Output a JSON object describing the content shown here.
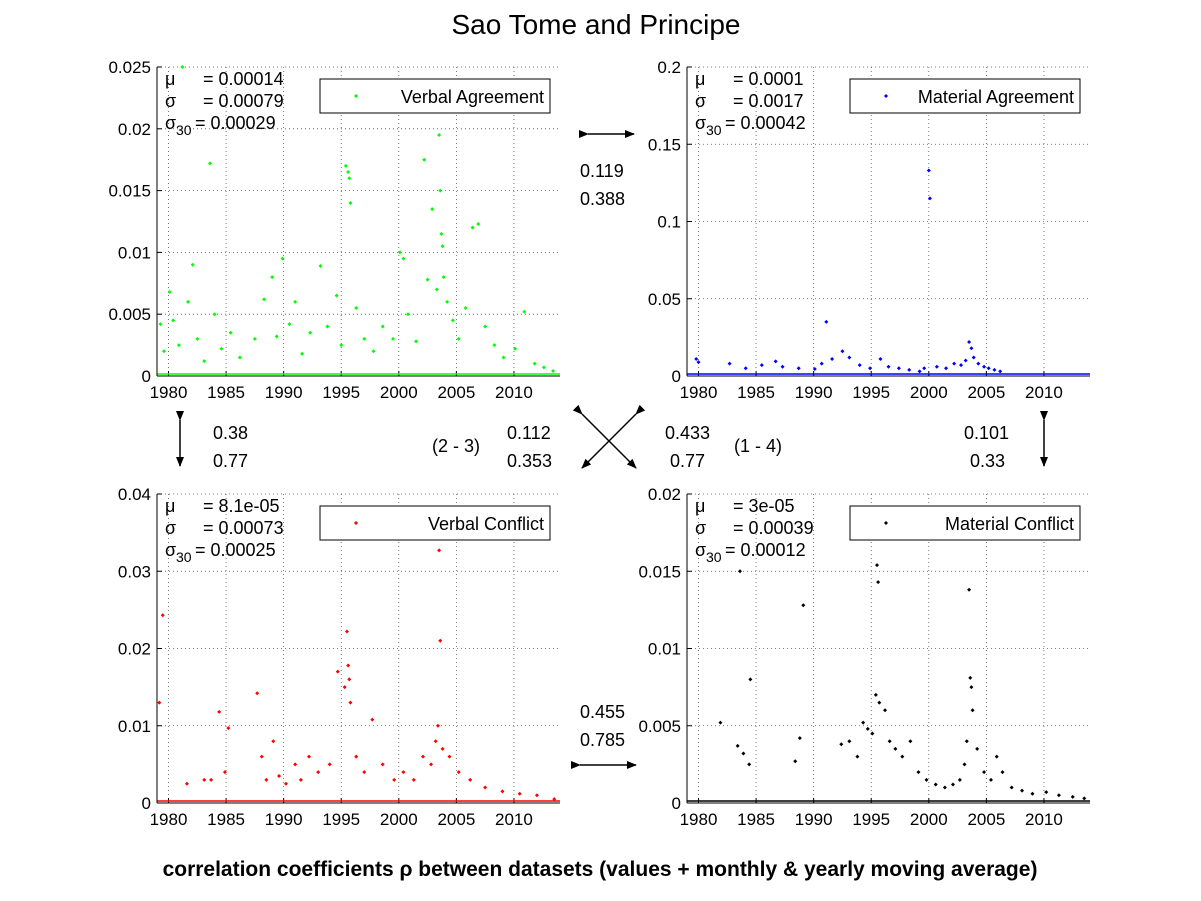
{
  "figure": {
    "title": "Sao Tome and Principe",
    "footer": "correlation coefficients ρ between datasets (values + monthly & yearly moving average)"
  },
  "correlations": {
    "top_pair": {
      "a": "0.119",
      "b": "0.388"
    },
    "left_pair": {
      "a": "0.38",
      "b": "0.77"
    },
    "right_pair": {
      "a": "0.101",
      "b": "0.33"
    },
    "diag_23": {
      "a": "0.112",
      "b": "0.353",
      "label": "(2 - 3)"
    },
    "diag_14": {
      "a": "0.433",
      "b": "0.77",
      "label": "(1 - 4)"
    },
    "bottom_pair": {
      "a": "0.455",
      "b": "0.785"
    }
  },
  "chart_data": [
    {
      "type": "scatter",
      "legend": "Verbal Agreement",
      "legend_placement": "top-right",
      "color": "#00ff00",
      "xlim": [
        1979,
        2014
      ],
      "ylim": [
        0,
        0.025
      ],
      "xticks": [
        "1980",
        "1985",
        "1990",
        "1995",
        "2000",
        "2005",
        "2010"
      ],
      "yticks": [
        "0",
        "0.005",
        "0.01",
        "0.015",
        "0.02",
        "0.025"
      ],
      "grid": true,
      "stats": {
        "mu": "= 0.00014",
        "sigma": "= 0.00079",
        "sigma30": "= 0.00029"
      },
      "points": [
        [
          1979.3,
          0.0042
        ],
        [
          1979.6,
          0.002
        ],
        [
          1980.1,
          0.0068
        ],
        [
          1980.4,
          0.0045
        ],
        [
          1980.9,
          0.0025
        ],
        [
          1981.2,
          0.025
        ],
        [
          1981.7,
          0.006
        ],
        [
          1982.1,
          0.009
        ],
        [
          1982.5,
          0.003
        ],
        [
          1983.1,
          0.0012
        ],
        [
          1983.6,
          0.0172
        ],
        [
          1984.0,
          0.005
        ],
        [
          1984.6,
          0.0022
        ],
        [
          1985.4,
          0.0035
        ],
        [
          1986.2,
          0.0015
        ],
        [
          1987.5,
          0.003
        ],
        [
          1988.3,
          0.0062
        ],
        [
          1989.0,
          0.008
        ],
        [
          1989.4,
          0.0032
        ],
        [
          1989.9,
          0.0095
        ],
        [
          1990.5,
          0.0042
        ],
        [
          1991.0,
          0.006
        ],
        [
          1991.6,
          0.0018
        ],
        [
          1992.3,
          0.0035
        ],
        [
          1993.2,
          0.0089
        ],
        [
          1993.8,
          0.004
        ],
        [
          1994.6,
          0.0065
        ],
        [
          1995.0,
          0.0025
        ],
        [
          1995.4,
          0.017
        ],
        [
          1995.6,
          0.0165
        ],
        [
          1995.7,
          0.016
        ],
        [
          1995.8,
          0.014
        ],
        [
          1996.3,
          0.0055
        ],
        [
          1997.0,
          0.003
        ],
        [
          1997.8,
          0.002
        ],
        [
          1998.6,
          0.004
        ],
        [
          1999.5,
          0.003
        ],
        [
          2000.1,
          0.01
        ],
        [
          2000.4,
          0.0095
        ],
        [
          2000.8,
          0.005
        ],
        [
          2001.5,
          0.0028
        ],
        [
          2002.2,
          0.0175
        ],
        [
          2002.5,
          0.0078
        ],
        [
          2002.9,
          0.0135
        ],
        [
          2003.3,
          0.007
        ],
        [
          2003.5,
          0.0195
        ],
        [
          2003.6,
          0.015
        ],
        [
          2003.7,
          0.0115
        ],
        [
          2003.8,
          0.0105
        ],
        [
          2003.9,
          0.008
        ],
        [
          2004.2,
          0.006
        ],
        [
          2004.7,
          0.0045
        ],
        [
          2005.2,
          0.003
        ],
        [
          2005.8,
          0.0055
        ],
        [
          2006.4,
          0.012
        ],
        [
          2006.9,
          0.0123
        ],
        [
          2007.5,
          0.004
        ],
        [
          2008.3,
          0.0025
        ],
        [
          2009.1,
          0.0015
        ],
        [
          2010.1,
          0.0022
        ],
        [
          2010.9,
          0.0052
        ],
        [
          2011.8,
          0.001
        ],
        [
          2012.6,
          0.0007
        ],
        [
          2013.4,
          0.0004
        ]
      ]
    },
    {
      "type": "scatter",
      "legend": "Material Agreement",
      "legend_placement": "top-right",
      "color": "#0000ff",
      "xlim": [
        1979,
        2014
      ],
      "ylim": [
        0,
        0.2
      ],
      "xticks": [
        "1980",
        "1985",
        "1990",
        "1995",
        "2000",
        "2005",
        "2010"
      ],
      "yticks": [
        "0",
        "0.05",
        "0.1",
        "0.15",
        "0.2"
      ],
      "grid": true,
      "stats": {
        "mu": "= 0.0001",
        "sigma": "= 0.0017",
        "sigma30": "= 0.00042"
      },
      "points": [
        [
          1979.8,
          0.011
        ],
        [
          1980.0,
          0.009
        ],
        [
          1982.7,
          0.008
        ],
        [
          1984.1,
          0.005
        ],
        [
          1985.5,
          0.007
        ],
        [
          1986.7,
          0.0095
        ],
        [
          1987.3,
          0.006
        ],
        [
          1988.7,
          0.005
        ],
        [
          1990.1,
          0.0045
        ],
        [
          1990.7,
          0.008
        ],
        [
          1991.1,
          0.035
        ],
        [
          1991.6,
          0.011
        ],
        [
          1992.5,
          0.016
        ],
        [
          1993.1,
          0.012
        ],
        [
          1994.0,
          0.007
        ],
        [
          1994.9,
          0.005
        ],
        [
          1995.8,
          0.011
        ],
        [
          1996.5,
          0.006
        ],
        [
          1997.4,
          0.005
        ],
        [
          1998.3,
          0.004
        ],
        [
          1999.2,
          0.003
        ],
        [
          1999.6,
          0.005
        ],
        [
          2000.0,
          0.133
        ],
        [
          2000.1,
          0.115
        ],
        [
          2000.7,
          0.006
        ],
        [
          2001.5,
          0.005
        ],
        [
          2002.2,
          0.008
        ],
        [
          2002.8,
          0.007
        ],
        [
          2003.2,
          0.01
        ],
        [
          2003.5,
          0.022
        ],
        [
          2003.7,
          0.018
        ],
        [
          2003.9,
          0.012
        ],
        [
          2004.3,
          0.008
        ],
        [
          2004.8,
          0.006
        ],
        [
          2005.2,
          0.005
        ],
        [
          2005.7,
          0.004
        ],
        [
          2006.2,
          0.003
        ]
      ]
    },
    {
      "type": "scatter",
      "legend": "Verbal Conflict",
      "legend_placement": "top-right",
      "color": "#ff0000",
      "xlim": [
        1979,
        2014
      ],
      "ylim": [
        0,
        0.04
      ],
      "xticks": [
        "1980",
        "1985",
        "1990",
        "1995",
        "2000",
        "2005",
        "2010"
      ],
      "yticks": [
        "0",
        "0.01",
        "0.02",
        "0.03",
        "0.04"
      ],
      "grid": true,
      "stats": {
        "mu": "= 8.1e-05",
        "sigma": "= 0.00073",
        "sigma30": "= 0.00025"
      },
      "points": [
        [
          1979.2,
          0.013
        ],
        [
          1979.5,
          0.0243
        ],
        [
          1981.6,
          0.0025
        ],
        [
          1983.1,
          0.003
        ],
        [
          1983.7,
          0.003
        ],
        [
          1984.4,
          0.0118
        ],
        [
          1984.9,
          0.004
        ],
        [
          1985.2,
          0.0097
        ],
        [
          1987.7,
          0.0142
        ],
        [
          1988.1,
          0.006
        ],
        [
          1988.5,
          0.003
        ],
        [
          1989.1,
          0.008
        ],
        [
          1989.6,
          0.0035
        ],
        [
          1990.2,
          0.0025
        ],
        [
          1991.0,
          0.005
        ],
        [
          1991.5,
          0.003
        ],
        [
          1992.2,
          0.006
        ],
        [
          1993.0,
          0.004
        ],
        [
          1994.0,
          0.005
        ],
        [
          1994.7,
          0.017
        ],
        [
          1995.3,
          0.015
        ],
        [
          1995.5,
          0.0222
        ],
        [
          1995.6,
          0.0178
        ],
        [
          1995.7,
          0.016
        ],
        [
          1995.8,
          0.013
        ],
        [
          1996.3,
          0.006
        ],
        [
          1997.0,
          0.004
        ],
        [
          1997.7,
          0.0108
        ],
        [
          1998.6,
          0.005
        ],
        [
          1999.6,
          0.003
        ],
        [
          2000.4,
          0.004
        ],
        [
          2001.3,
          0.003
        ],
        [
          2002.1,
          0.006
        ],
        [
          2002.8,
          0.005
        ],
        [
          2003.2,
          0.008
        ],
        [
          2003.4,
          0.01
        ],
        [
          2003.5,
          0.0327
        ],
        [
          2003.6,
          0.021
        ],
        [
          2003.8,
          0.007
        ],
        [
          2004.4,
          0.006
        ],
        [
          2005.2,
          0.004
        ],
        [
          2006.2,
          0.003
        ],
        [
          2007.5,
          0.002
        ],
        [
          2009.0,
          0.0015
        ],
        [
          2010.5,
          0.0012
        ],
        [
          2012.0,
          0.001
        ],
        [
          2013.5,
          0.0005
        ]
      ]
    },
    {
      "type": "scatter",
      "legend": "Material Conflict",
      "legend_placement": "top-right",
      "color": "#000000",
      "xlim": [
        1979,
        2014
      ],
      "ylim": [
        0,
        0.02
      ],
      "xticks": [
        "1980",
        "1985",
        "1990",
        "1995",
        "2000",
        "2005",
        "2010"
      ],
      "yticks": [
        "0",
        "0.005",
        "0.01",
        "0.015",
        "0.02"
      ],
      "grid": true,
      "stats": {
        "mu": "= 3e-05",
        "sigma": "= 0.00039",
        "sigma30": "= 0.00012"
      },
      "points": [
        [
          1981.9,
          0.0052
        ],
        [
          1983.4,
          0.0037
        ],
        [
          1983.6,
          0.015
        ],
        [
          1983.9,
          0.0032
        ],
        [
          1984.4,
          0.0025
        ],
        [
          1984.5,
          0.008
        ],
        [
          1988.4,
          0.0027
        ],
        [
          1988.8,
          0.0042
        ],
        [
          1989.1,
          0.0128
        ],
        [
          1992.4,
          0.0038
        ],
        [
          1993.1,
          0.004
        ],
        [
          1993.8,
          0.003
        ],
        [
          1994.3,
          0.0052
        ],
        [
          1994.7,
          0.0048
        ],
        [
          1995.1,
          0.0045
        ],
        [
          1995.4,
          0.007
        ],
        [
          1995.5,
          0.0154
        ],
        [
          1995.6,
          0.0143
        ],
        [
          1995.7,
          0.0065
        ],
        [
          1996.2,
          0.006
        ],
        [
          1996.6,
          0.004
        ],
        [
          1997.1,
          0.0035
        ],
        [
          1997.7,
          0.003
        ],
        [
          1998.4,
          0.004
        ],
        [
          1999.1,
          0.002
        ],
        [
          1999.8,
          0.0015
        ],
        [
          2000.6,
          0.0012
        ],
        [
          2001.4,
          0.001
        ],
        [
          2002.1,
          0.0012
        ],
        [
          2002.7,
          0.0015
        ],
        [
          2003.1,
          0.0025
        ],
        [
          2003.3,
          0.004
        ],
        [
          2003.5,
          0.0138
        ],
        [
          2003.6,
          0.0081
        ],
        [
          2003.7,
          0.0075
        ],
        [
          2003.8,
          0.006
        ],
        [
          2004.2,
          0.0035
        ],
        [
          2004.8,
          0.002
        ],
        [
          2005.4,
          0.0015
        ],
        [
          2005.9,
          0.003
        ],
        [
          2006.4,
          0.002
        ],
        [
          2007.2,
          0.001
        ],
        [
          2008.1,
          0.0008
        ],
        [
          2009.0,
          0.0006
        ],
        [
          2010.2,
          0.0007
        ],
        [
          2011.3,
          0.0005
        ],
        [
          2012.5,
          0.0004
        ],
        [
          2013.5,
          0.0003
        ]
      ]
    }
  ]
}
